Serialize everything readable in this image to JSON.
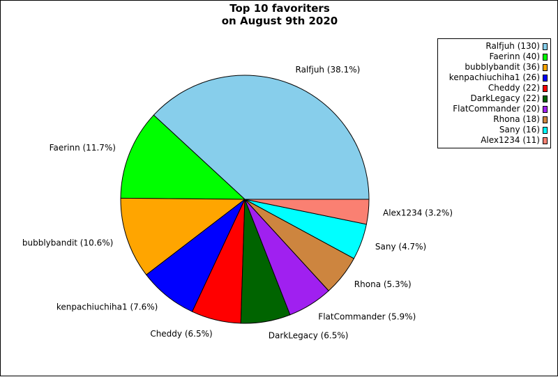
{
  "chart_data": {
    "type": "pie",
    "title": [
      "Top 10 favoriters",
      "on August 9th 2020"
    ],
    "legend_position": "top-right",
    "slices": [
      {
        "label": "Ralfjuh",
        "value": 130,
        "percent_label": "Ralfjuh (38.1%)",
        "legend_label": "Ralfjuh (130)",
        "color": "#87ceeb"
      },
      {
        "label": "Faerinn",
        "value": 40,
        "percent_label": "Faerinn (11.7%)",
        "legend_label": "Faerinn (40)",
        "color": "#00ff00"
      },
      {
        "label": "bubblybandit",
        "value": 36,
        "percent_label": "bubblybandit (10.6%)",
        "legend_label": "bubblybandit (36)",
        "color": "#ffa500"
      },
      {
        "label": "kenpachiuchiha1",
        "value": 26,
        "percent_label": "kenpachiuchiha1 (7.6%)",
        "legend_label": "kenpachiuchiha1 (26)",
        "color": "#0000ff"
      },
      {
        "label": "Cheddy",
        "value": 22,
        "percent_label": "Cheddy (6.5%)",
        "legend_label": "Cheddy (22)",
        "color": "#ff0000"
      },
      {
        "label": "DarkLegacy",
        "value": 22,
        "percent_label": "DarkLegacy (6.5%)",
        "legend_label": "DarkLegacy (22)",
        "color": "#006400"
      },
      {
        "label": "FlatCommander",
        "value": 20,
        "percent_label": "FlatCommander (5.9%)",
        "legend_label": "FlatCommander (20)",
        "color": "#a020f0"
      },
      {
        "label": "Rhona",
        "value": 18,
        "percent_label": "Rhona (5.3%)",
        "legend_label": "Rhona (18)",
        "color": "#cd853f"
      },
      {
        "label": "Sany",
        "value": 16,
        "percent_label": "Sany (4.7%)",
        "legend_label": "Sany (16)",
        "color": "#00ffff"
      },
      {
        "label": "Alex1234",
        "value": 11,
        "percent_label": "Alex1234 (3.2%)",
        "legend_label": "Alex1234 (11)",
        "color": "#fa8072"
      }
    ]
  }
}
